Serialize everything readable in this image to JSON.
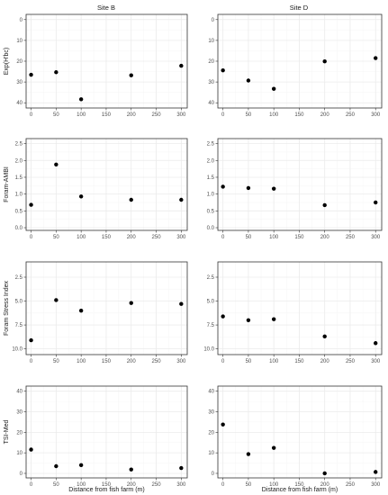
{
  "figure": {
    "strips": [
      "Site B",
      "Site D"
    ],
    "xlabel": "Distance from fish farm (m)"
  },
  "chart_data": [
    {
      "type": "scatter",
      "row": 0,
      "col": 0,
      "facet": "Site B",
      "ylabel": "Exp(H'bc)",
      "xlabel": "",
      "x": [
        0,
        50,
        100,
        200,
        300
      ],
      "y": [
        26.5,
        25.3,
        38.3,
        26.8,
        22.2
      ],
      "xticks": [
        0,
        50,
        100,
        150,
        200,
        250,
        300
      ],
      "yticks": [
        0,
        10,
        20,
        30,
        40
      ],
      "xlim": [
        -10,
        312
      ],
      "ylim": [
        -2.5,
        42.5
      ],
      "y_reversed": true,
      "grid": true
    },
    {
      "type": "scatter",
      "row": 0,
      "col": 1,
      "facet": "Site D",
      "ylabel": "",
      "xlabel": "",
      "x": [
        0,
        50,
        100,
        200,
        300
      ],
      "y": [
        24.4,
        29.3,
        33.3,
        20.1,
        18.5
      ],
      "xticks": [
        0,
        50,
        100,
        150,
        200,
        250,
        300
      ],
      "yticks": [
        0,
        10,
        20,
        30,
        40
      ],
      "xlim": [
        -10,
        312
      ],
      "ylim": [
        -2.5,
        42.5
      ],
      "y_reversed": true,
      "grid": true
    },
    {
      "type": "scatter",
      "row": 1,
      "col": 0,
      "facet": "Site B",
      "ylabel": "Foram-AMBI",
      "xlabel": "",
      "x": [
        0,
        50,
        100,
        200,
        300
      ],
      "y": [
        0.68,
        1.88,
        0.93,
        0.83,
        0.83
      ],
      "xticks": [
        0,
        50,
        100,
        150,
        200,
        250,
        300
      ],
      "yticks": [
        0.0,
        0.5,
        1.0,
        1.5,
        2.0,
        2.5
      ],
      "xlim": [
        -10,
        312
      ],
      "ylim": [
        -0.08,
        2.65
      ],
      "y_reversed": false,
      "grid": true
    },
    {
      "type": "scatter",
      "row": 1,
      "col": 1,
      "facet": "Site D",
      "ylabel": "",
      "xlabel": "",
      "x": [
        0,
        50,
        100,
        200,
        300
      ],
      "y": [
        1.22,
        1.18,
        1.16,
        0.67,
        0.75
      ],
      "xticks": [
        0,
        50,
        100,
        150,
        200,
        250,
        300
      ],
      "yticks": [
        0.0,
        0.5,
        1.0,
        1.5,
        2.0,
        2.5
      ],
      "xlim": [
        -10,
        312
      ],
      "ylim": [
        -0.08,
        2.65
      ],
      "y_reversed": false,
      "grid": true
    },
    {
      "type": "scatter",
      "row": 2,
      "col": 0,
      "facet": "Site B",
      "ylabel": "Foram Stress Index",
      "xlabel": "",
      "x": [
        0,
        50,
        100,
        200,
        300
      ],
      "y": [
        9.1,
        4.9,
        6.0,
        5.2,
        5.3
      ],
      "xticks": [
        0,
        50,
        100,
        150,
        200,
        250,
        300
      ],
      "yticks": [
        2.5,
        5.0,
        7.5,
        10.0
      ],
      "xlim": [
        -10,
        312
      ],
      "ylim": [
        0.9,
        10.6
      ],
      "y_reversed": true,
      "grid": true
    },
    {
      "type": "scatter",
      "row": 2,
      "col": 1,
      "facet": "Site D",
      "ylabel": "",
      "xlabel": "",
      "x": [
        0,
        50,
        100,
        200,
        300
      ],
      "y": [
        6.6,
        7.0,
        6.9,
        8.7,
        9.4
      ],
      "xticks": [
        0,
        50,
        100,
        150,
        200,
        250,
        300
      ],
      "yticks": [
        2.5,
        5.0,
        7.5,
        10.0
      ],
      "xlim": [
        -10,
        312
      ],
      "ylim": [
        0.9,
        10.6
      ],
      "y_reversed": true,
      "grid": true
    },
    {
      "type": "scatter",
      "row": 3,
      "col": 0,
      "facet": "Site B",
      "ylabel": "TSI-Med",
      "xlabel": "Distance from fish farm (m)",
      "x": [
        0,
        50,
        100,
        200,
        300
      ],
      "y": [
        11.6,
        3.5,
        4.0,
        1.9,
        2.6
      ],
      "xticks": [
        0,
        50,
        100,
        150,
        200,
        250,
        300
      ],
      "yticks": [
        0,
        10,
        20,
        30,
        40
      ],
      "xlim": [
        -10,
        312
      ],
      "ylim": [
        -2.2,
        42.5
      ],
      "y_reversed": false,
      "grid": true
    },
    {
      "type": "scatter",
      "row": 3,
      "col": 1,
      "facet": "Site D",
      "ylabel": "",
      "xlabel": "Distance from fish farm (m)",
      "x": [
        0,
        50,
        100,
        200,
        300
      ],
      "y": [
        23.8,
        9.4,
        12.4,
        0.0,
        0.7
      ],
      "xticks": [
        0,
        50,
        100,
        150,
        200,
        250,
        300
      ],
      "yticks": [
        0,
        10,
        20,
        30,
        40
      ],
      "xlim": [
        -10,
        312
      ],
      "ylim": [
        -2.2,
        42.5
      ],
      "y_reversed": false,
      "grid": true
    }
  ],
  "colors": {
    "point": "#000000",
    "panel_border": "#333333",
    "grid_major": "#ebebeb",
    "grid_minor": "#f5f5f5",
    "tick_text": "#4d4d4d",
    "title_text": "#1a1a1a"
  }
}
